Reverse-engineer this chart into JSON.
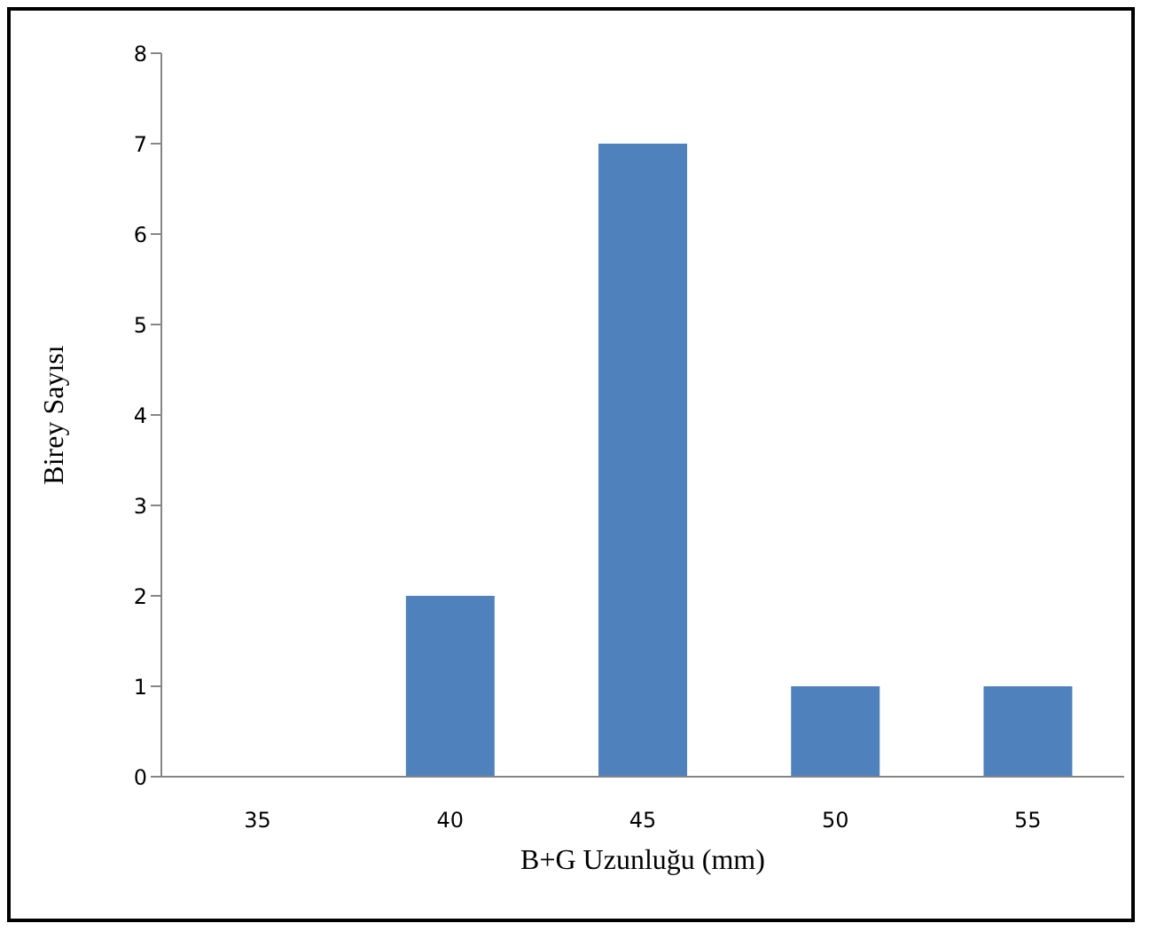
{
  "chart_data": {
    "type": "bar",
    "xlabel": "B+G Uzunluğu (mm)",
    "ylabel": "Birey Sayısı",
    "categories": [
      "35",
      "40",
      "45",
      "50",
      "55"
    ],
    "values": [
      0,
      2,
      7,
      1,
      1
    ],
    "color": "#4f81bd",
    "ylim": [
      0,
      8
    ],
    "yticks": [
      0,
      1,
      2,
      3,
      4,
      5,
      6,
      7,
      8
    ],
    "grid": false,
    "legend": false
  }
}
